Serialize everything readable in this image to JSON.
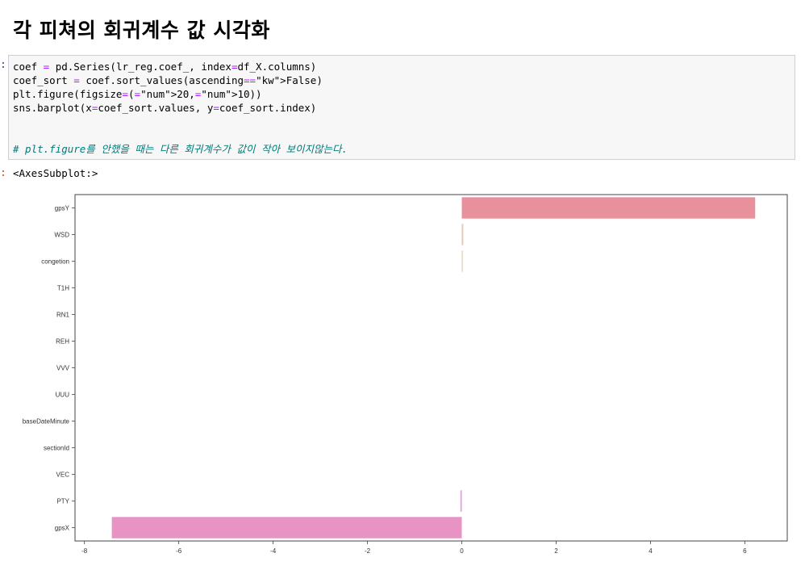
{
  "heading": "각 피쳐의 회귀계수 값 시각화",
  "code_lines": [
    "coef = pd.Series(lr_reg.coef_, index=df_X.columns)",
    "coef_sort = coef.sort_values(ascending=False)",
    "plt.figure(figsize=(20,10))",
    "sns.barplot(x=coef_sort.values, y=coef_sort.index)",
    "",
    "",
    "# plt.figure를 안했을 때는 다른 회귀계수가 값이 작아 보이지않는다."
  ],
  "output_text": "<AxesSubplot:>",
  "chart_data": {
    "type": "bar",
    "orientation": "horizontal",
    "categories": [
      "gpsY",
      "WSD",
      "congetion",
      "T1H",
      "RN1",
      "REH",
      "VVV",
      "UUU",
      "baseDateMinute",
      "sectionId",
      "VEC",
      "PTY",
      "gpsX"
    ],
    "values": [
      6.22,
      0.03,
      0.02,
      0.0,
      0.0,
      0.0,
      0.0,
      0.0,
      0.0,
      0.0,
      0.0,
      -0.03,
      -7.42
    ],
    "colors": [
      "#e8919d",
      "#e6c6a2",
      "#e9caa6",
      "#cfd8a5",
      "#a8d8a8",
      "#96d6b8",
      "#9cd6d2",
      "#a3d0e6",
      "#b0c2ee",
      "#c2b5ef",
      "#dab3ee",
      "#e19ae6",
      "#e794c5"
    ],
    "xticks": [
      -8,
      -6,
      -4,
      -2,
      0,
      2,
      4,
      6
    ],
    "xlim": [
      -8.2,
      6.9
    ],
    "xlabel": "",
    "ylabel": "",
    "title": ""
  }
}
